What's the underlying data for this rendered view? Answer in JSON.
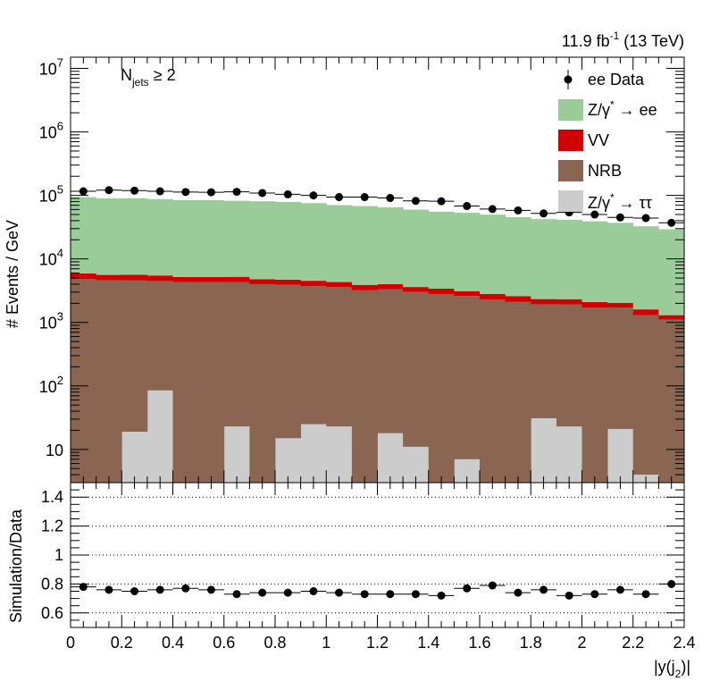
{
  "header": {
    "lumi": "11.9 fb",
    "lumi_sup": "-1",
    "energy": " (13 TeV)"
  },
  "annotation": {
    "label": "N",
    "label_sub": "jets",
    "cut": " ≥ 2"
  },
  "chart_data": [
    {
      "type": "bar",
      "stacked": true,
      "log_y": true,
      "xlim": [
        0,
        2.4
      ],
      "ylim": [
        3,
        15000000
      ],
      "ylabel": "# Events / GeV",
      "bin_width": 0.1,
      "x": [
        0.05,
        0.15,
        0.25,
        0.35,
        0.45,
        0.55,
        0.65,
        0.75,
        0.85,
        0.95,
        1.05,
        1.15,
        1.25,
        1.35,
        1.45,
        1.55,
        1.65,
        1.75,
        1.85,
        1.95,
        2.05,
        2.15,
        2.25,
        2.35
      ],
      "x_ticks": [
        "0",
        "0.2",
        "0.4",
        "0.6",
        "0.8",
        "1",
        "1.2",
        "1.4",
        "1.6",
        "1.8",
        "2",
        "2.2",
        "2.4"
      ],
      "y_tick_labels": [
        {
          "base": "10",
          "exp": ""
        },
        {
          "base": "10",
          "exp": "2"
        },
        {
          "base": "10",
          "exp": "3"
        },
        {
          "base": "10",
          "exp": "4"
        },
        {
          "base": "10",
          "exp": "5"
        },
        {
          "base": "10",
          "exp": "6"
        },
        {
          "base": "10",
          "exp": "7"
        }
      ],
      "series": [
        {
          "name": "Z/γ* → ττ",
          "label_main": "Z/γ",
          "label_sup": "*",
          "label_tail": " → ττ",
          "color": "#cccccc",
          "values": [
            0,
            0,
            19,
            85,
            0,
            0,
            23,
            0,
            15,
            25,
            23,
            0,
            18,
            11,
            0,
            7,
            0,
            0,
            31,
            23,
            0,
            21,
            4,
            0
          ]
        },
        {
          "name": "NRB",
          "label_main": "NRB",
          "color": "#8a6552",
          "values": [
            4800,
            4600,
            4600,
            4400,
            4300,
            4300,
            4300,
            4000,
            3900,
            3700,
            3600,
            3200,
            3300,
            3000,
            2800,
            2600,
            2300,
            2100,
            1900,
            1900,
            1700,
            1700,
            1300,
            1100
          ]
        },
        {
          "name": "VV",
          "label_main": "VV",
          "color": "#d20000",
          "values": [
            1100,
            1000,
            1000,
            1000,
            900,
            900,
            900,
            800,
            800,
            800,
            700,
            700,
            700,
            600,
            600,
            500,
            500,
            500,
            400,
            400,
            400,
            300,
            300,
            200
          ]
        },
        {
          "name": "Z/γ* → ee",
          "label_main": "Z/γ",
          "label_sup": "*",
          "label_tail": " → ee",
          "color": "#99cc99",
          "values": [
            88000,
            84000,
            84000,
            82000,
            79000,
            79000,
            77000,
            76000,
            74000,
            71000,
            66000,
            64000,
            61000,
            56000,
            52000,
            50000,
            47000,
            43000,
            40000,
            39000,
            37000,
            35000,
            31000,
            28000
          ]
        }
      ],
      "data": {
        "name": "ee Data",
        "label_main": "ee Data",
        "values": [
          116000,
          121000,
          119000,
          116000,
          113000,
          112000,
          114000,
          109000,
          104000,
          100000,
          94000,
          94000,
          91000,
          82000,
          81000,
          68000,
          61000,
          58000,
          52000,
          54000,
          50000,
          45000,
          44000,
          37000
        ]
      }
    },
    {
      "type": "scatter",
      "xlim": [
        0,
        2.4
      ],
      "ylim": [
        0.5,
        1.5
      ],
      "xlabel": "|y(j2)|",
      "xlabel_main": "|y(j",
      "xlabel_sub": "2",
      "xlabel_tail": ")|",
      "ylabel": "Simulation/Data",
      "y_ticks": [
        "0.6",
        "0.8",
        "1",
        "1.2",
        "1.4"
      ],
      "grid_lines": [
        0.6,
        0.8,
        1.0,
        1.2,
        1.4
      ],
      "x": [
        0.05,
        0.15,
        0.25,
        0.35,
        0.45,
        0.55,
        0.65,
        0.75,
        0.85,
        0.95,
        1.05,
        1.15,
        1.25,
        1.35,
        1.45,
        1.55,
        1.65,
        1.75,
        1.85,
        1.95,
        2.05,
        2.15,
        2.25,
        2.35
      ],
      "values": [
        0.78,
        0.76,
        0.75,
        0.76,
        0.77,
        0.76,
        0.73,
        0.74,
        0.74,
        0.75,
        0.74,
        0.73,
        0.73,
        0.73,
        0.72,
        0.77,
        0.79,
        0.74,
        0.76,
        0.72,
        0.73,
        0.76,
        0.73,
        0.8
      ]
    }
  ]
}
